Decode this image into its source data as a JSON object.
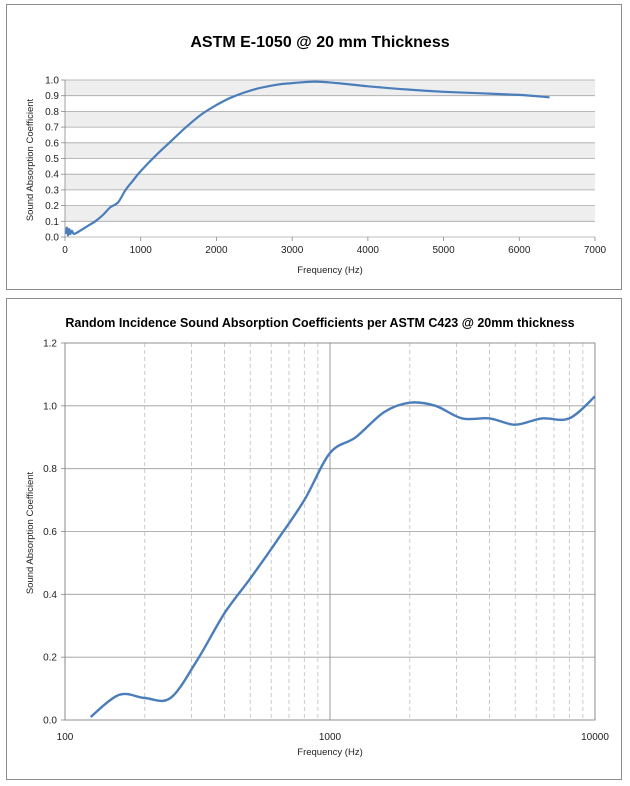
{
  "chart_data": [
    {
      "type": "line",
      "title": "ASTM E-1050 @ 20 mm Thickness",
      "xlabel": "Frequency (Hz)",
      "ylabel": "Sound Absorption Coefficient",
      "xlim": [
        0,
        7000
      ],
      "ylim": [
        0,
        1.0
      ],
      "xscale": "linear",
      "xticks": [
        0,
        1000,
        2000,
        3000,
        4000,
        5000,
        6000,
        7000
      ],
      "yticks": [
        0.0,
        0.1,
        0.2,
        0.3,
        0.4,
        0.5,
        0.6,
        0.7,
        0.8,
        0.9,
        1.0
      ],
      "ytick_labels": [
        "0.0",
        "0.1",
        "0.2",
        "0.3",
        "0.4",
        "0.5",
        "0.6",
        "0.7",
        "0.8",
        "0.9",
        "1.0"
      ],
      "grid": "horizontal",
      "series": [
        {
          "name": "E-1050",
          "color": "#4a7ebb",
          "x": [
            15,
            25,
            40,
            55,
            70,
            90,
            120,
            200,
            300,
            400,
            500,
            600,
            700,
            800,
            900,
            1000,
            1200,
            1400,
            1600,
            1800,
            2000,
            2200,
            2500,
            2800,
            3000,
            3300,
            3600,
            4000,
            4500,
            5000,
            5500,
            6000,
            6400
          ],
          "y": [
            0.02,
            0.06,
            0.01,
            0.05,
            0.02,
            0.04,
            0.02,
            0.04,
            0.07,
            0.1,
            0.14,
            0.19,
            0.22,
            0.3,
            0.36,
            0.42,
            0.52,
            0.61,
            0.7,
            0.78,
            0.84,
            0.89,
            0.94,
            0.97,
            0.98,
            0.99,
            0.98,
            0.96,
            0.94,
            0.925,
            0.915,
            0.905,
            0.89
          ]
        }
      ]
    },
    {
      "type": "line",
      "title": "Random Incidence Sound Absorption Coefficients per ASTM C423 @ 20mm thickness",
      "xlabel": "Frequency (Hz)",
      "ylabel": "Sound Absorption Coefficient",
      "xlim": [
        100,
        10000
      ],
      "ylim": [
        0,
        1.2
      ],
      "xscale": "log",
      "xticks": [
        100,
        1000,
        10000
      ],
      "yticks": [
        0.0,
        0.2,
        0.4,
        0.6,
        0.8,
        1.0,
        1.2
      ],
      "ytick_labels": [
        "0.0",
        "0.2",
        "0.4",
        "0.6",
        "0.8",
        "1.0",
        "1.2"
      ],
      "grid": "both",
      "series": [
        {
          "name": "C423",
          "color": "#4a7ebb",
          "x": [
            125,
            160,
            200,
            250,
            315,
            400,
            500,
            630,
            800,
            1000,
            1250,
            1600,
            2000,
            2500,
            3150,
            4000,
            5000,
            6300,
            8000,
            10000
          ],
          "y": [
            0.01,
            0.08,
            0.07,
            0.07,
            0.19,
            0.34,
            0.45,
            0.57,
            0.7,
            0.85,
            0.9,
            0.98,
            1.01,
            1.0,
            0.96,
            0.96,
            0.94,
            0.96,
            0.96,
            1.03
          ]
        }
      ]
    }
  ]
}
